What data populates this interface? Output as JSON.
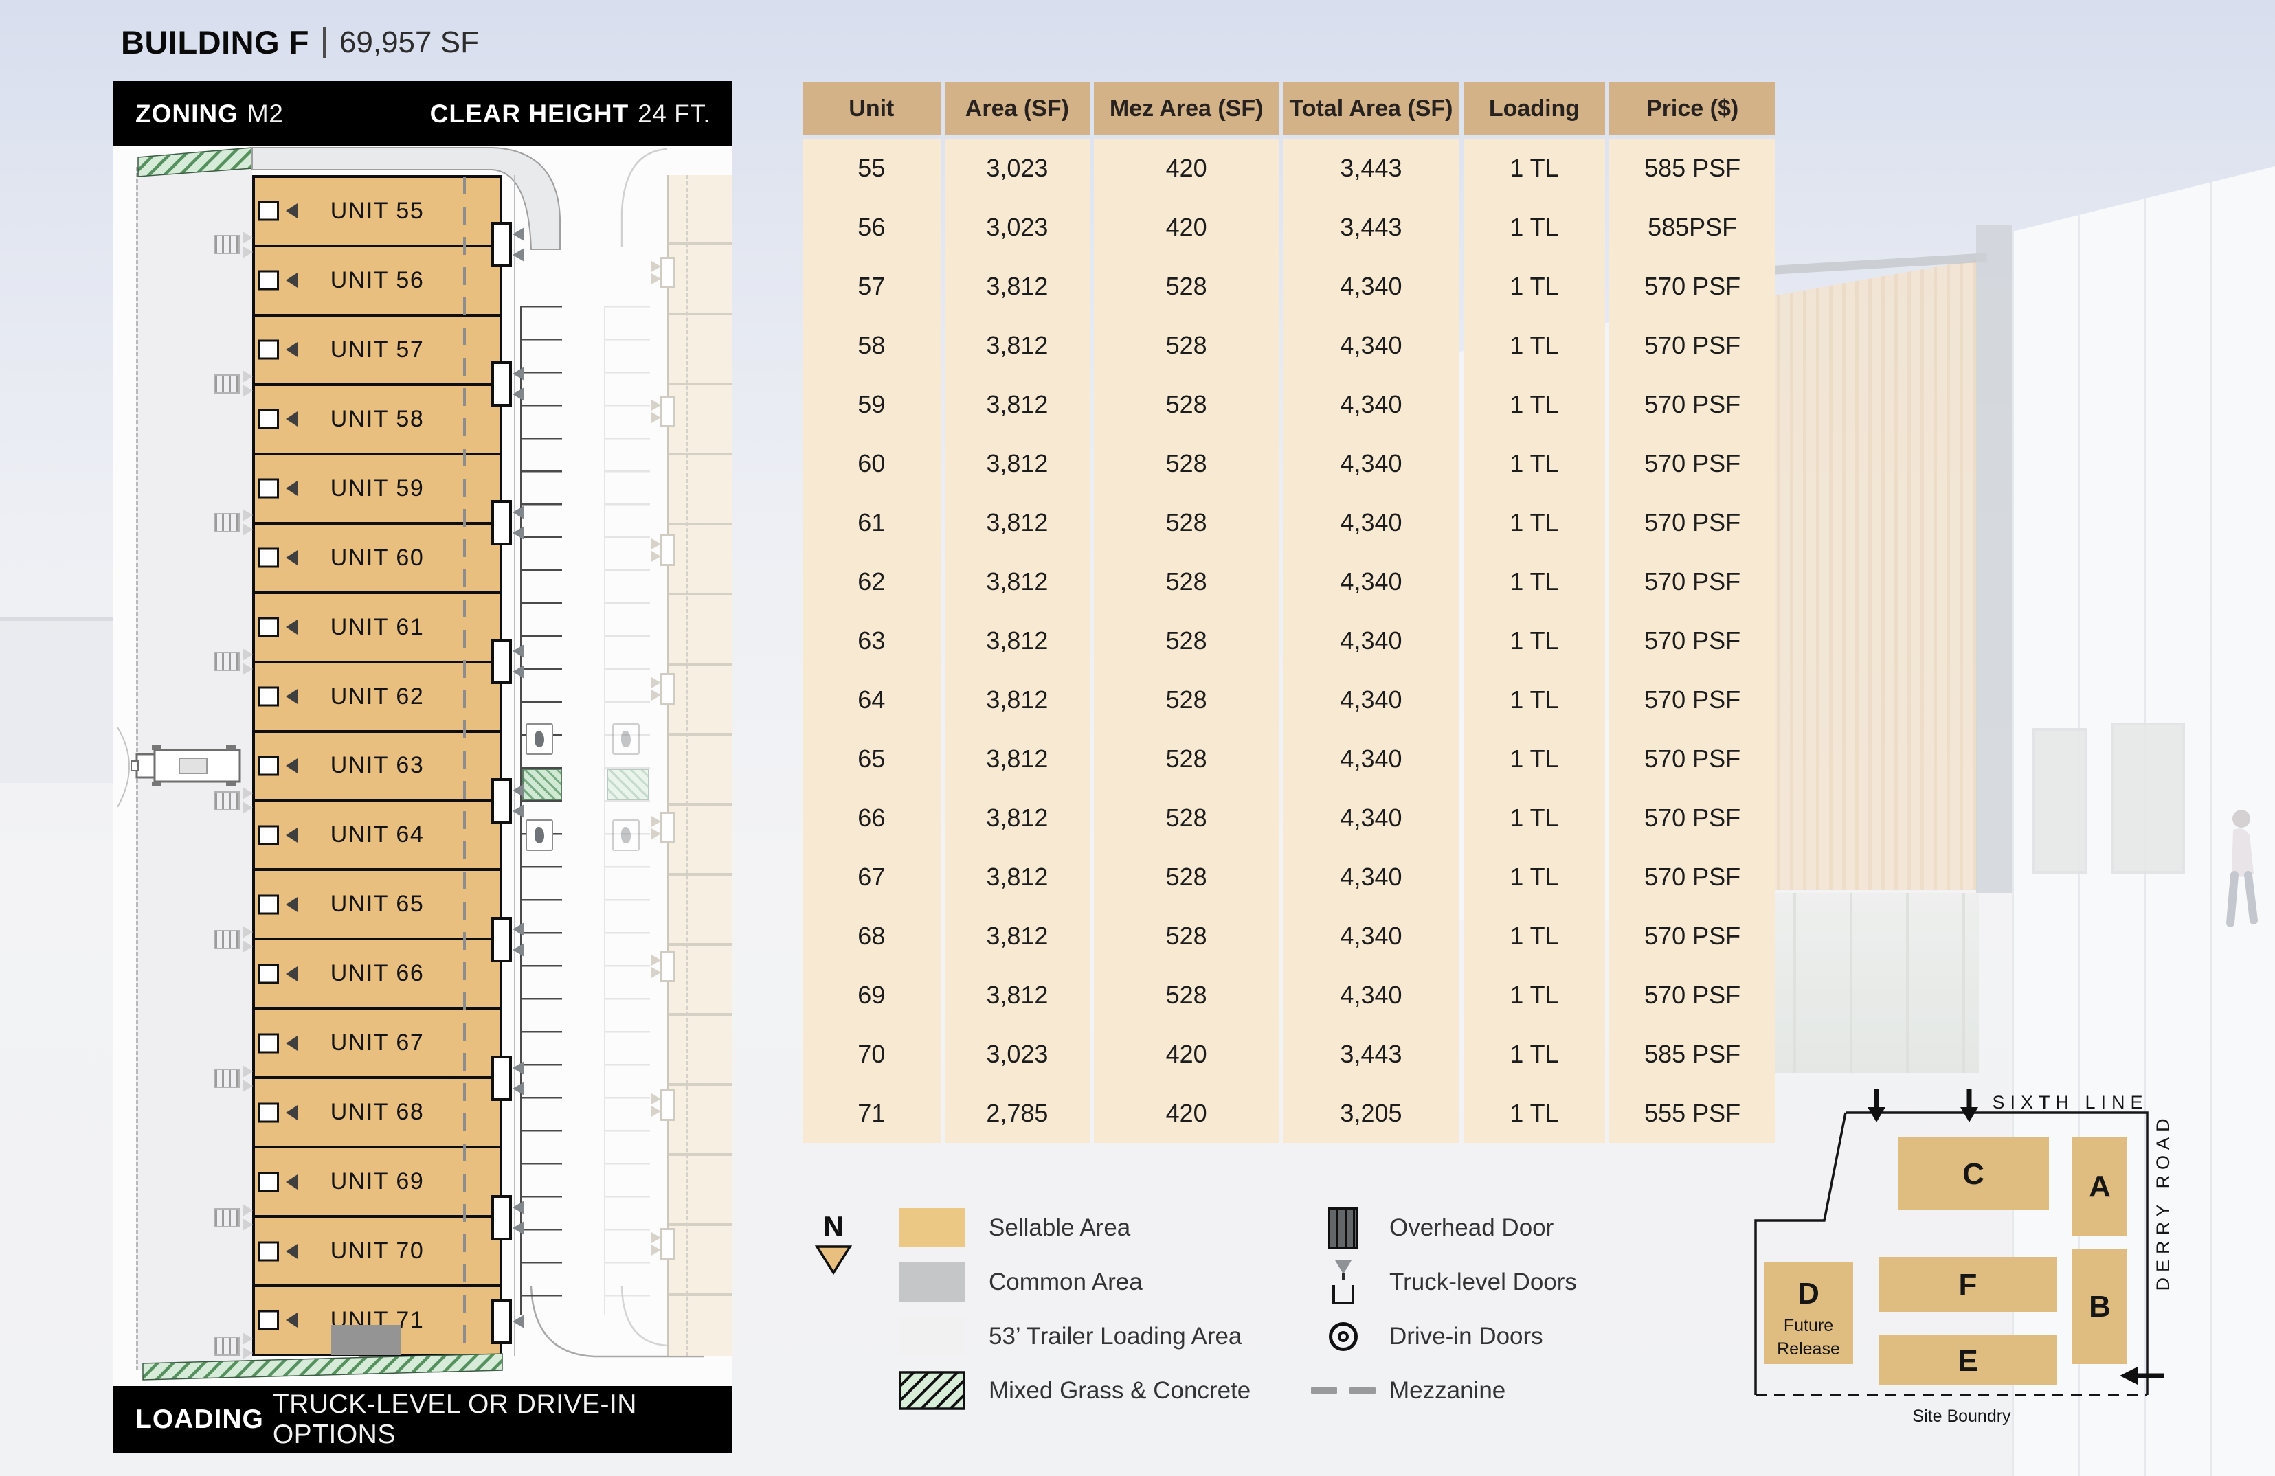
{
  "header": {
    "building": "BUILDING F",
    "area": "69,957 SF",
    "zoning_label": "ZONING",
    "zoning_value": "M2",
    "clear_height_label": "CLEAR HEIGHT",
    "clear_height_value": "24 FT.",
    "loading_label": "LOADING",
    "loading_value": "TRUCK-LEVEL OR DRIVE-IN OPTIONS"
  },
  "floorplan": {
    "units": [
      "UNIT 55",
      "UNIT 56",
      "UNIT 57",
      "UNIT 58",
      "UNIT 59",
      "UNIT 60",
      "UNIT 61",
      "UNIT 62",
      "UNIT 63",
      "UNIT 64",
      "UNIT 65",
      "UNIT 66",
      "UNIT 67",
      "UNIT 68",
      "UNIT 69",
      "UNIT 70",
      "UNIT 71"
    ]
  },
  "table": {
    "columns": [
      "Unit",
      "Area (SF)",
      "Mez Area (SF)",
      "Total Area (SF)",
      "Loading",
      "Price ($)"
    ],
    "rows": [
      [
        "55",
        "3,023",
        "420",
        "3,443",
        "1 TL",
        "585 PSF"
      ],
      [
        "56",
        "3,023",
        "420",
        "3,443",
        "1 TL",
        "585PSF"
      ],
      [
        "57",
        "3,812",
        "528",
        "4,340",
        "1 TL",
        "570 PSF"
      ],
      [
        "58",
        "3,812",
        "528",
        "4,340",
        "1 TL",
        "570 PSF"
      ],
      [
        "59",
        "3,812",
        "528",
        "4,340",
        "1 TL",
        "570 PSF"
      ],
      [
        "60",
        "3,812",
        "528",
        "4,340",
        "1 TL",
        "570 PSF"
      ],
      [
        "61",
        "3,812",
        "528",
        "4,340",
        "1 TL",
        "570 PSF"
      ],
      [
        "62",
        "3,812",
        "528",
        "4,340",
        "1 TL",
        "570 PSF"
      ],
      [
        "63",
        "3,812",
        "528",
        "4,340",
        "1 TL",
        "570 PSF"
      ],
      [
        "64",
        "3,812",
        "528",
        "4,340",
        "1 TL",
        "570 PSF"
      ],
      [
        "65",
        "3,812",
        "528",
        "4,340",
        "1 TL",
        "570 PSF"
      ],
      [
        "66",
        "3,812",
        "528",
        "4,340",
        "1 TL",
        "570 PSF"
      ],
      [
        "67",
        "3,812",
        "528",
        "4,340",
        "1 TL",
        "570 PSF"
      ],
      [
        "68",
        "3,812",
        "528",
        "4,340",
        "1 TL",
        "570 PSF"
      ],
      [
        "69",
        "3,812",
        "528",
        "4,340",
        "1 TL",
        "570 PSF"
      ],
      [
        "70",
        "3,023",
        "420",
        "3,443",
        "1 TL",
        "585 PSF"
      ],
      [
        "71",
        "2,785",
        "420",
        "3,205",
        "1 TL",
        "555 PSF"
      ]
    ]
  },
  "legend": {
    "north_label": "N",
    "items_left": [
      {
        "name": "sellable-area",
        "label": "Sellable Area",
        "color": "#ebc884"
      },
      {
        "name": "common-area",
        "label": "Common Area",
        "color": "#c4c6c8"
      },
      {
        "name": "trailer-loading-area",
        "label": "53’ Trailer Loading Area",
        "color": "#f1f1f2"
      },
      {
        "name": "mixed-grass-concrete",
        "label": "Mixed Grass & Concrete",
        "color": "hatch"
      }
    ],
    "items_right": [
      {
        "name": "overhead-door",
        "label": "Overhead Door"
      },
      {
        "name": "truck-level-doors",
        "label": "Truck-level Doors"
      },
      {
        "name": "drive-in-doors",
        "label": "Drive-in Doors"
      },
      {
        "name": "mezzanine",
        "label": "Mezzanine"
      }
    ]
  },
  "sitemap": {
    "top_road": "SIXTH LINE",
    "right_road": "DERRY ROAD",
    "boundary_label": "Site Boundry",
    "buildings": [
      {
        "label": "C"
      },
      {
        "label": "A"
      },
      {
        "label": "D",
        "sublabel1": "Future",
        "sublabel2": "Release"
      },
      {
        "label": "F"
      },
      {
        "label": "B"
      },
      {
        "label": "E"
      }
    ]
  },
  "colors": {
    "unit_tan": "#e8bf7e",
    "faded_tan": "#f6ecd9",
    "header_tan": "#d2b286",
    "row_cream": "#f8e9d3",
    "site_tan": "#dfbc80",
    "grass_bg": "#d6ecd8",
    "grass_line": "#55915f"
  }
}
